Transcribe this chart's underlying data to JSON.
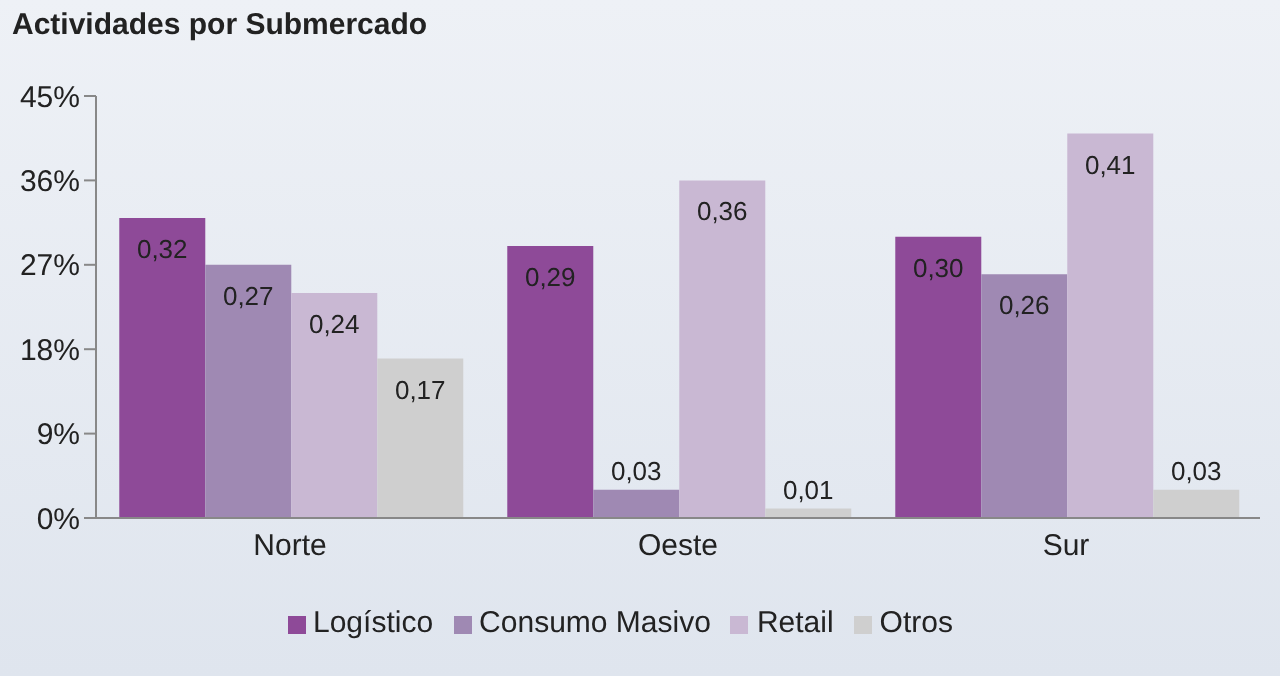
{
  "chart_data": {
    "type": "bar",
    "title": "Actividades por Submercado",
    "categories": [
      "Norte",
      "Oeste",
      "Sur"
    ],
    "series": [
      {
        "name": "Logístico",
        "color": "#8e4a98",
        "values": [
          0.32,
          0.29,
          0.3
        ],
        "value_labels": [
          "0,32",
          "0,29",
          "0,30"
        ]
      },
      {
        "name": "Consumo Masivo",
        "color": "#9f89b3",
        "values": [
          0.27,
          0.03,
          0.26
        ],
        "value_labels": [
          "0,27",
          "0,03",
          "0,26"
        ]
      },
      {
        "name": "Retail",
        "color": "#c9b8d3",
        "values": [
          0.24,
          0.36,
          0.41
        ],
        "value_labels": [
          "0,24",
          "0,36",
          "0,41"
        ]
      },
      {
        "name": "Otros",
        "color": "#cfcfcf",
        "values": [
          0.17,
          0.01,
          0.03
        ],
        "value_labels": [
          "0,17",
          "0,01",
          "0,03"
        ]
      }
    ],
    "ylim": [
      0,
      0.45
    ],
    "yticks": [
      {
        "value": 0,
        "label": "0%"
      },
      {
        "value": 0.09,
        "label": "9%"
      },
      {
        "value": 0.18,
        "label": "18%"
      },
      {
        "value": 0.27,
        "label": "27%"
      },
      {
        "value": 0.36,
        "label": "36%"
      },
      {
        "value": 0.45,
        "label": "45%"
      }
    ],
    "grid": false,
    "legend": "bottom"
  }
}
